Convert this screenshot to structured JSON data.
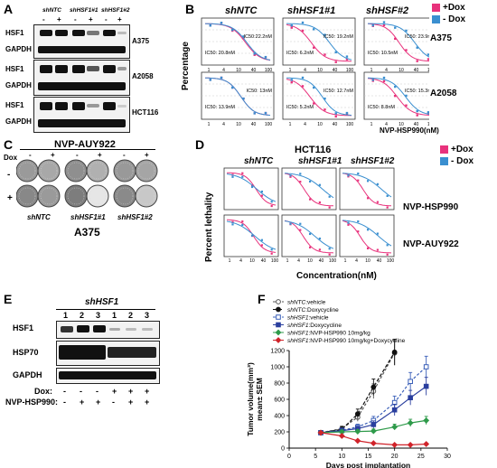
{
  "panel_letters": {
    "A": "A",
    "B": "B",
    "C": "C",
    "D": "D",
    "E": "E",
    "F": "F"
  },
  "panelA": {
    "groups": [
      "shNTC",
      "shHSF1#1",
      "shHSF1#2"
    ],
    "signs": [
      "-",
      "+",
      "-",
      "+",
      "-",
      "+"
    ],
    "rows": [
      {
        "labels": [
          "HSF1",
          "GAPDH"
        ],
        "cell": "A375"
      },
      {
        "labels": [
          "HSF1",
          "GAPDH"
        ],
        "cell": "A2058"
      },
      {
        "labels": [
          "HSF1",
          "GAPDH"
        ],
        "cell": "HCT116"
      }
    ]
  },
  "panelB": {
    "col_titles": [
      "shNTC",
      "shHSF1#1",
      "shHSF#2"
    ],
    "ylabel": "Percentage",
    "xlabel": "NVP-HSP990(nM)",
    "legend": [
      {
        "label": "+Dox",
        "color": "#e8327c"
      },
      {
        "label": "- Dox",
        "color": "#3a8fd0"
      }
    ],
    "row_labels": [
      "A375",
      "A2058"
    ],
    "xticks": [
      "1",
      "4",
      "10",
      "40",
      "100"
    ],
    "ic50": [
      [
        "IC50: 20.8nM",
        "IC50:22.2nM"
      ],
      [
        "IC50: 6.2nM",
        "IC50: 19.2nM"
      ],
      [
        "IC50: 10.5nM",
        "IC50: 23.9nM"
      ],
      [
        "IC50: 13.9nM",
        "IC50: 13nM"
      ],
      [
        "IC50: 5.2nM",
        "IC50: 12.7nM"
      ],
      [
        "IC50: 8.8nM",
        "IC50: 15.3nM"
      ]
    ]
  },
  "panelC": {
    "title": "NVP-AUY922",
    "dox": "Dox",
    "signs": [
      "-",
      "+",
      "-",
      "+",
      "-",
      "+"
    ],
    "row_signs": [
      "-",
      "+"
    ],
    "groups": [
      "shNTC",
      "shHSF1#1",
      "shHSF1#2"
    ],
    "cell": "A375"
  },
  "panelD": {
    "title": "HCT116",
    "col_titles": [
      "shNTC",
      "shHSF1#1",
      "shHSF1#2"
    ],
    "ylabel": "Percent lethality",
    "xlabel": "Concentration(nM)",
    "legend": [
      {
        "label": "+Dox",
        "color": "#e8327c"
      },
      {
        "label": "- Dox",
        "color": "#3a8fd0"
      }
    ],
    "row_labels": [
      "NVP-HSP990",
      "NVP-AUY922"
    ],
    "xticks": [
      "1",
      "4",
      "10",
      "40",
      "100"
    ]
  },
  "panelE": {
    "title": "shHSF1",
    "lanes": [
      "1",
      "2",
      "3",
      "1",
      "2",
      "3"
    ],
    "rows": [
      "HSF1",
      "HSP70",
      "GAPDH"
    ],
    "dox_label": "Dox:",
    "dox": [
      "-",
      "-",
      "-",
      "+",
      "+",
      "+"
    ],
    "drug_label": "NVP-HSP990:",
    "drug": [
      "-",
      "+",
      "+",
      "-",
      "+",
      "+"
    ]
  },
  "chart_data": {
    "type": "line",
    "xlabel": "Days post implantation",
    "ylabel": "Tumor volume(mm³) mean± SEM",
    "xlim": [
      0,
      30
    ],
    "ylim": [
      0,
      1200
    ],
    "xticks": [
      0,
      5,
      10,
      15,
      20,
      25,
      30
    ],
    "yticks": [
      0,
      200,
      400,
      600,
      800,
      1000,
      1200
    ],
    "series": [
      {
        "name": "shNTC:vehicle",
        "prefix": "shNTC",
        "suffix": ":vehicle",
        "color": "#555555",
        "marker": "circle-open",
        "dash": "3,2",
        "x": [
          6,
          10,
          13,
          16,
          20
        ],
        "y": [
          190,
          240,
          380,
          700,
          1170
        ],
        "err": [
          15,
          30,
          50,
          90,
          150
        ]
      },
      {
        "name": "shNTC:Doxycycline",
        "prefix": "shNTC",
        "suffix": ":Doxycycline",
        "color": "#111111",
        "marker": "circle",
        "dash": "4,2",
        "x": [
          6,
          10,
          13,
          16,
          20
        ],
        "y": [
          190,
          230,
          420,
          750,
          1180
        ],
        "err": [
          15,
          35,
          60,
          100,
          160
        ]
      },
      {
        "name": "shHSF1:vehicle",
        "prefix": "shHSF1",
        "suffix": ":vehicle",
        "color": "#3a5fb8",
        "marker": "square-open",
        "dash": "3,2",
        "x": [
          6,
          10,
          13,
          16,
          20,
          23,
          26
        ],
        "y": [
          190,
          220,
          260,
          340,
          560,
          820,
          1000
        ],
        "err": [
          15,
          25,
          35,
          50,
          80,
          110,
          130
        ]
      },
      {
        "name": "shHSF1:Doxycycline",
        "prefix": "shHSF1",
        "suffix": ":Doxycycline",
        "color": "#2a3f9e",
        "marker": "square",
        "dash": "",
        "x": [
          6,
          10,
          13,
          16,
          20,
          23,
          26
        ],
        "y": [
          190,
          215,
          240,
          290,
          470,
          620,
          760
        ],
        "err": [
          15,
          20,
          30,
          45,
          70,
          90,
          110
        ]
      },
      {
        "name": "shHSF1:NVP-HSP990 10mg/kg",
        "prefix": "shHSF1",
        "suffix": ":NVP-HSP990 10mg/kg",
        "color": "#2e9a4a",
        "marker": "diamond",
        "dash": "",
        "x": [
          6,
          10,
          13,
          16,
          20,
          23,
          26
        ],
        "y": [
          190,
          200,
          205,
          210,
          260,
          310,
          340
        ],
        "err": [
          15,
          20,
          20,
          25,
          35,
          45,
          50
        ]
      },
      {
        "name": "shHSF1:NVP-HSP990 10mg/kg+Doxycycline",
        "prefix": "shHSF1",
        "suffix": ":NVP-HSP990 10mg/kg+Doxycycline",
        "color": "#d0232a",
        "marker": "diamond",
        "dash": "",
        "x": [
          6,
          10,
          13,
          16,
          20,
          23,
          26
        ],
        "y": [
          190,
          150,
          90,
          60,
          40,
          40,
          50
        ],
        "err": [
          15,
          15,
          12,
          10,
          8,
          8,
          10
        ]
      }
    ]
  }
}
